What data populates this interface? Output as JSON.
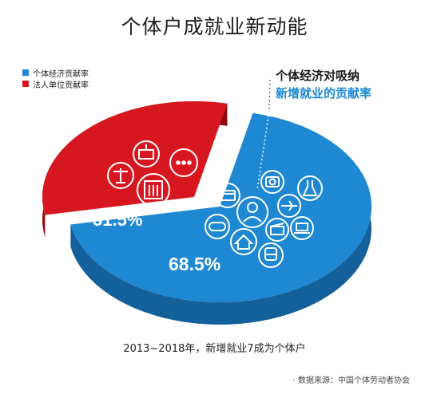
{
  "title": "个体户成就业新动能",
  "callout": {
    "line1": "个体经济对吸纳",
    "line2": "新增就业的贡献率"
  },
  "caption": "2013~2018年，新增就业7成为个体户",
  "source": "· 数据来源：中国个体劳动者协会",
  "colors": {
    "blue": "#1e88d2",
    "blue_dark": "#14609a",
    "red": "#d7171f",
    "red_dark": "#8e0b10"
  },
  "chart_data": {
    "type": "pie",
    "title": "个体户成就业新动能",
    "legend_placement": "top-left",
    "slices": [
      {
        "name": "个体经济贡献率",
        "value": 68.5,
        "label": "68.5%",
        "color": "#1e88d2"
      },
      {
        "name": "法人单位贡献率",
        "value": 31.5,
        "label": "31.5%",
        "color": "#d7171f"
      }
    ]
  }
}
